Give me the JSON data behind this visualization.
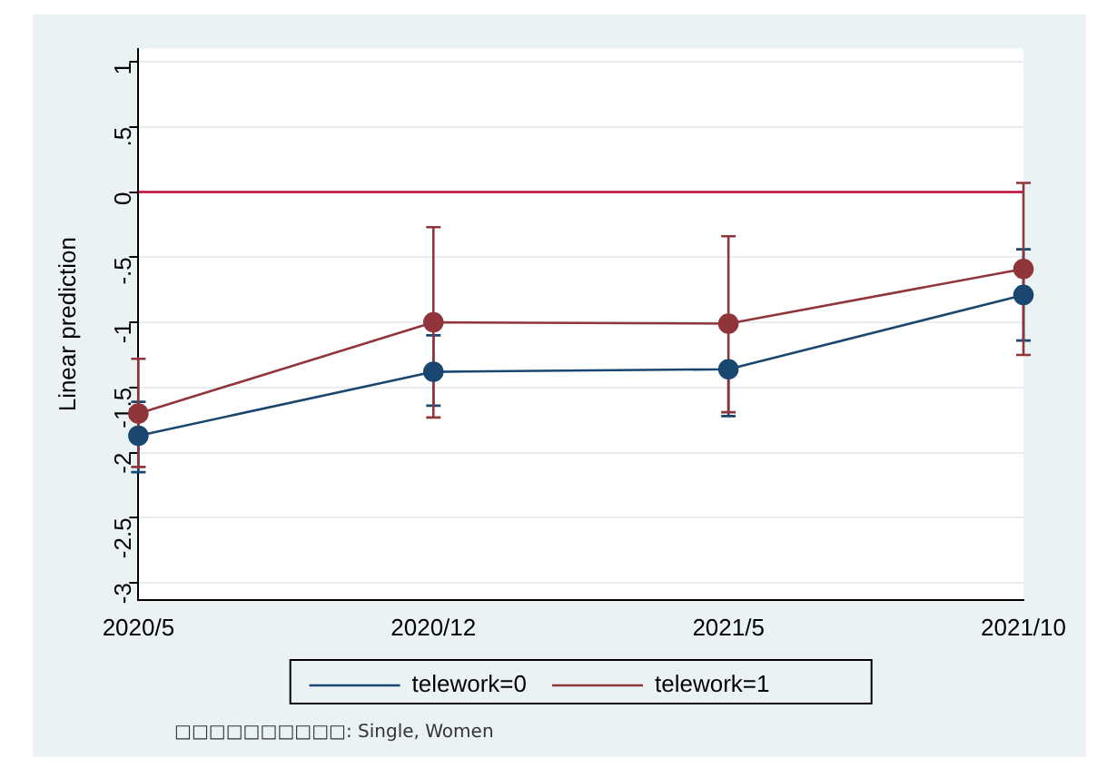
{
  "chart_data": {
    "type": "line",
    "ylabel": "Linear prediction",
    "categories": [
      "2020/5",
      "2020/12",
      "2021/5",
      "2021/10"
    ],
    "series": [
      {
        "name": "telework=0",
        "color": "#1a476f",
        "values": [
          -1.87,
          -1.38,
          -1.36,
          -0.79
        ],
        "errors": [
          [
            -2.15,
            -1.61
          ],
          [
            -1.64,
            -1.1
          ],
          [
            -1.72,
            -1.36
          ],
          [
            -1.14,
            -0.44
          ]
        ]
      },
      {
        "name": "telework=1",
        "color": "#90353b",
        "values": [
          -1.7,
          -1.0,
          -1.01,
          -0.59
        ],
        "errors": [
          [
            -2.11,
            -1.28
          ],
          [
            -1.73,
            -0.27
          ],
          [
            -1.69,
            -0.34
          ],
          [
            -1.25,
            0.07
          ]
        ]
      }
    ],
    "ylim": [
      -3.13,
      1.1
    ],
    "yticks": [
      {
        "value": 1,
        "label": "1"
      },
      {
        "value": 0.5,
        "label": ".5"
      },
      {
        "value": 0,
        "label": "0"
      },
      {
        "value": -0.5,
        "label": "-.5"
      },
      {
        "value": -1,
        "label": "-1"
      },
      {
        "value": -1.5,
        "label": "-1.5"
      },
      {
        "value": -2,
        "label": "-2"
      },
      {
        "value": -2.5,
        "label": "-2.5"
      },
      {
        "value": -3,
        "label": "-3"
      }
    ],
    "ref_lines": [
      {
        "axis": "y",
        "value": 0,
        "color": "#c10534"
      }
    ],
    "grid": "y",
    "legend": "bottom",
    "marker": "circle",
    "line_style": "solid",
    "annotations": [
      "□□□□□□□□□□: Single, Women"
    ]
  }
}
